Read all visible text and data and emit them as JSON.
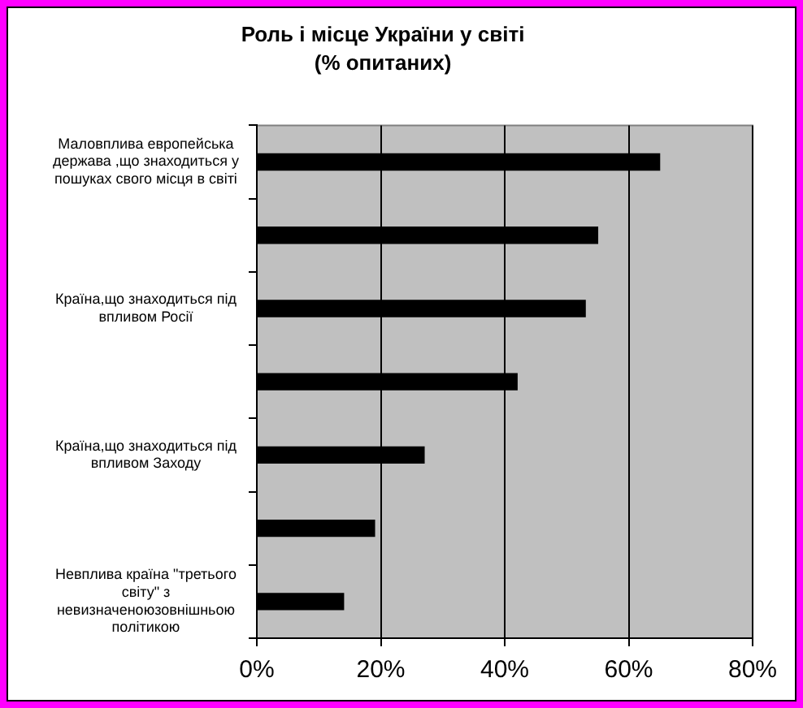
{
  "chart_data": {
    "type": "bar",
    "orientation": "horizontal",
    "title": "Роль і місце України у світі",
    "subtitle": "(% опитаних)",
    "categories": [
      "Маловплива европейська держава ,що знаходиться у пошуках свого місця в світі",
      null,
      "Країна,що знаходиться під впливом Росії",
      null,
      "Країна,що знаходиться під впливом Заходу",
      null,
      "Невплива країна \"третього світу\" з невизначеноюзовнішньою політикою"
    ],
    "values": [
      65,
      55,
      53,
      42,
      27,
      19,
      14
    ],
    "color": "#000000",
    "xlim": [
      0,
      80
    ],
    "xticks": [
      {
        "value": 0,
        "label": "0%"
      },
      {
        "value": 20,
        "label": "20%"
      },
      {
        "value": 40,
        "label": "40%"
      },
      {
        "value": 60,
        "label": "60%"
      },
      {
        "value": 80,
        "label": "80%"
      }
    ],
    "grid": "x",
    "legend": false
  }
}
